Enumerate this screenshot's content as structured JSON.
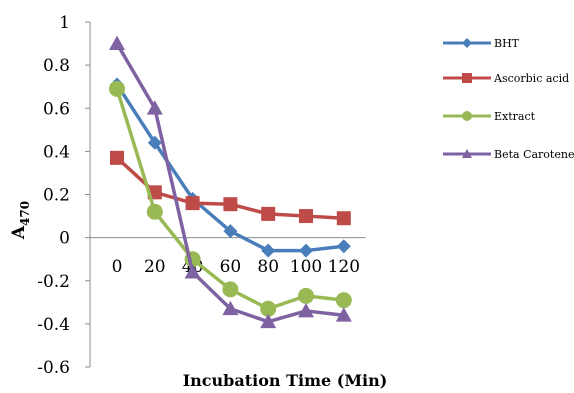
{
  "chart_data": {
    "type": "line",
    "title": "",
    "xlabel": "Incubation Time  (Min)",
    "ylabel_main": "A",
    "ylabel_sub": "470",
    "x": [
      0,
      20,
      40,
      60,
      80,
      100,
      120
    ],
    "x_tick_labels": [
      "0",
      "20",
      "40",
      "60",
      "80",
      "100",
      "120"
    ],
    "ylim": [
      -0.6,
      1.0
    ],
    "y_ticks": [
      1,
      0.8,
      0.6,
      0.4,
      0.2,
      0,
      -0.2,
      -0.4,
      -0.6
    ],
    "y_tick_labels": [
      "1",
      "0.8",
      "0.6",
      "0.4",
      "0.2",
      "0",
      "-0.2",
      "-0.4",
      "-0.6"
    ],
    "grid": false,
    "legend_position": "right",
    "series": [
      {
        "name": "BHT",
        "marker": "diamond",
        "color": "#4a7ebb",
        "values": [
          0.71,
          0.44,
          0.18,
          0.03,
          -0.06,
          -0.06,
          -0.04
        ]
      },
      {
        "name": "Ascorbic acid",
        "marker": "square",
        "color": "#be4b48",
        "values": [
          0.37,
          0.21,
          0.16,
          0.155,
          0.11,
          0.1,
          0.09
        ]
      },
      {
        "name": "Extract",
        "marker": "circle",
        "color": "#98b954",
        "values": [
          0.69,
          0.12,
          -0.1,
          -0.24,
          -0.33,
          -0.27,
          -0.29
        ]
      },
      {
        "name": "Beta Carotene",
        "marker": "triangle",
        "color": "#7e62a1",
        "values": [
          0.9,
          0.6,
          -0.16,
          -0.33,
          -0.39,
          -0.34,
          -0.36
        ]
      }
    ]
  }
}
